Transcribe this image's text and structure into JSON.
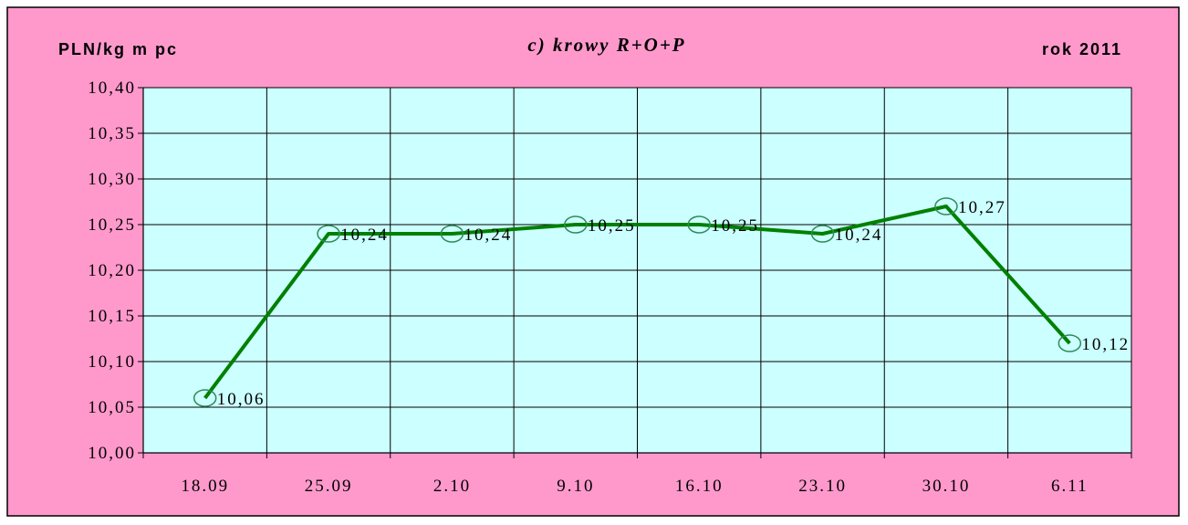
{
  "chart_data": {
    "type": "line",
    "title": "c) krowy R+O+P",
    "unit_label": "PLN/kg m pc",
    "year_label": "rok 2011",
    "categories": [
      "18.09",
      "25.09",
      "2.10",
      "9.10",
      "16.10",
      "23.10",
      "30.10",
      "6.11"
    ],
    "series": [
      {
        "values": [
          10.06,
          10.24,
          10.24,
          10.25,
          10.25,
          10.24,
          10.27,
          10.12
        ],
        "labels": [
          "10,06",
          "10,24",
          "10,24",
          "10,25",
          "10,25",
          "10,24",
          "10,27",
          "10,12"
        ]
      }
    ],
    "ylim": [
      10.0,
      10.4
    ],
    "yticks": [
      "10,00",
      "10,05",
      "10,10",
      "10,15",
      "10,20",
      "10,25",
      "10,30",
      "10,35",
      "10,40"
    ],
    "grid": true,
    "colors": {
      "outer_background": "#ff99cc",
      "plot_background": "#ccffff",
      "line": "#008000",
      "marker": "#2e8b57",
      "grid": "#000000"
    }
  }
}
